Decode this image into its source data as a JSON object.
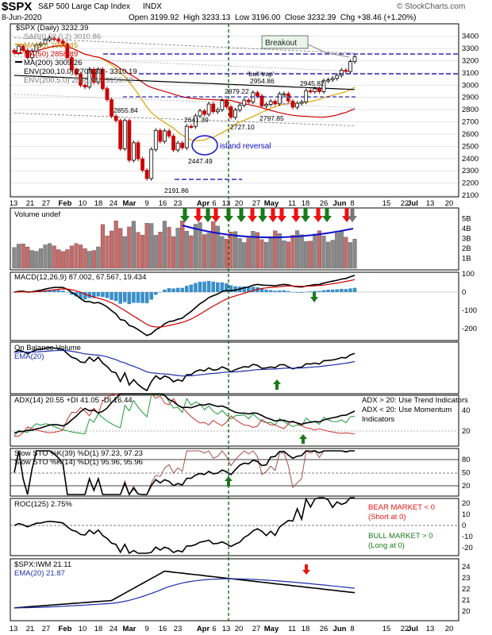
{
  "header": {
    "symbol": "$SPX",
    "name": "S&P 500 Large Cap Index",
    "exchange": "INDX",
    "date": "8-Jun-2020",
    "quote": "Open 3199.92  High 3233.13  Low 3196.00  Close 3232.39  Chg +38.46 (+1.20%)",
    "credit": "© StockCharts.com"
  },
  "colors": {
    "up": "#000000",
    "down": "#cc0000",
    "ma20": "#e0a000",
    "ma50": "#cc0000",
    "ma200": "#000000",
    "sar": "#888888",
    "env": "#777777",
    "macd_hist": "#3a8fc8",
    "ema": "#1f2fa8",
    "green": "#1a7a1a",
    "red": "#ee1111",
    "blue": "#1111cc",
    "vline": "#1b6b1b"
  },
  "price_panel": {
    "legend": [
      "$SPX (Daily) 3232.39",
      "SAR(0.02,0.2) 3010.86",
      "MA(20) 2999.45",
      "MA(50) 2858.89",
      "MA(200) 3009.26",
      "ENV(200,10.0) 2708.33 - 3310.19",
      "ENV(200,5.0) 2858.80 - 3159.72"
    ],
    "annotations": {
      "breakout": "Breakout",
      "bull_trap": "'bull trap'",
      "island": "island reversal"
    },
    "level_labels": [
      "2855.84",
      "2641.39",
      "2447.49",
      "2191.86",
      "2879.22",
      "2727.10",
      "2954.86",
      "2797.85",
      "2945.82"
    ],
    "y_ticks": [
      "3400",
      "3300",
      "3200",
      "3100",
      "3000",
      "2900",
      "2800",
      "2700",
      "2600",
      "2500",
      "2400",
      "2300",
      "2200",
      "2100"
    ]
  },
  "volume_panel": {
    "legend": "Volume undef",
    "y_ticks": [
      "5B",
      "4B",
      "3B",
      "2B",
      "1B"
    ]
  },
  "macd_panel": {
    "legend": "MACD(12,26,9) 87.002, 67.567, 19.434",
    "y_ticks": [
      "100",
      "0",
      "-100",
      "-200"
    ]
  },
  "obv_panel": {
    "legend": [
      "On Balance Volume",
      "EMA(20)"
    ]
  },
  "adx_panel": {
    "legend": "ADX(14) 20.55 +DI 41.05 -DI 16.44",
    "note": [
      "ADX > 20: Use Trend Indicators",
      "ADX < 20: Use Momentum",
      "Indicators"
    ],
    "y_ticks": [
      "40",
      "20"
    ]
  },
  "sto_panel": {
    "legend": [
      "Slow STO %K(39) %D(1) 97.23, 97.23",
      "Slow STO %K(14) %D(1) 95.96, 95.96"
    ],
    "y_ticks": [
      "80",
      "50",
      "20"
    ]
  },
  "roc_panel": {
    "legend": "ROC(125) 2.75%",
    "bear": [
      "BEAR MARKET < 0",
      "(Short at 0)"
    ],
    "bull": [
      "BULL MARKET > 0",
      "(Long at 0)"
    ],
    "y_ticks": [
      "20",
      "10",
      "0",
      "-10",
      "-20"
    ]
  },
  "ratio_panel": {
    "legend": [
      "$SPX:IWM 21.11",
      "EMA(20) 21.87"
    ],
    "y_ticks": [
      "24",
      "23",
      "22",
      "21",
      "20"
    ]
  },
  "x_axis": [
    "13",
    "21",
    "27",
    "Feb",
    "10",
    "18",
    "24",
    "Mar",
    "9",
    "16",
    "23",
    "Apr",
    "6",
    "13",
    "20",
    "27",
    "May",
    "11",
    "18",
    "26",
    "Jun",
    "8",
    "15",
    "22",
    "Jul",
    "13",
    "20"
  ],
  "chart_data": {
    "type": "line",
    "title": "$SPX S&P 500 Large Cap Index",
    "ohlc_last": {
      "open": 3199.92,
      "high": 3233.13,
      "low": 3196.0,
      "close": 3232.39
    },
    "price_ylim": [
      2100,
      3450
    ],
    "close_series": [
      3265,
      3320,
      3285,
      3225,
      3280,
      3330,
      3338,
      3370,
      3386,
      3375,
      3360,
      3338,
      3225,
      3128,
      3090,
      3000,
      2985,
      3130,
      3023,
      3130,
      2972,
      2882,
      2746,
      2711,
      2480,
      2711,
      2386,
      2529,
      2398,
      2305,
      2237,
      2475,
      2630,
      2541,
      2626,
      2584,
      2470,
      2527,
      2489,
      2664,
      2663,
      2749,
      2790,
      2762,
      2846,
      2783,
      2799,
      2874,
      2823,
      2737,
      2797,
      2836,
      2878,
      2863,
      2939,
      2912,
      2830,
      2843,
      2868,
      2848,
      2929,
      2930,
      2870,
      2820,
      2852,
      2863,
      2955,
      2948,
      2971,
      2948,
      3036,
      3044,
      3056,
      3080,
      3123,
      3112,
      3193,
      3232
    ],
    "key_levels": {
      "breakout": 3260,
      "bull_trap": 3100,
      "resistance": 2930,
      "gap_low": 2230
    }
  }
}
